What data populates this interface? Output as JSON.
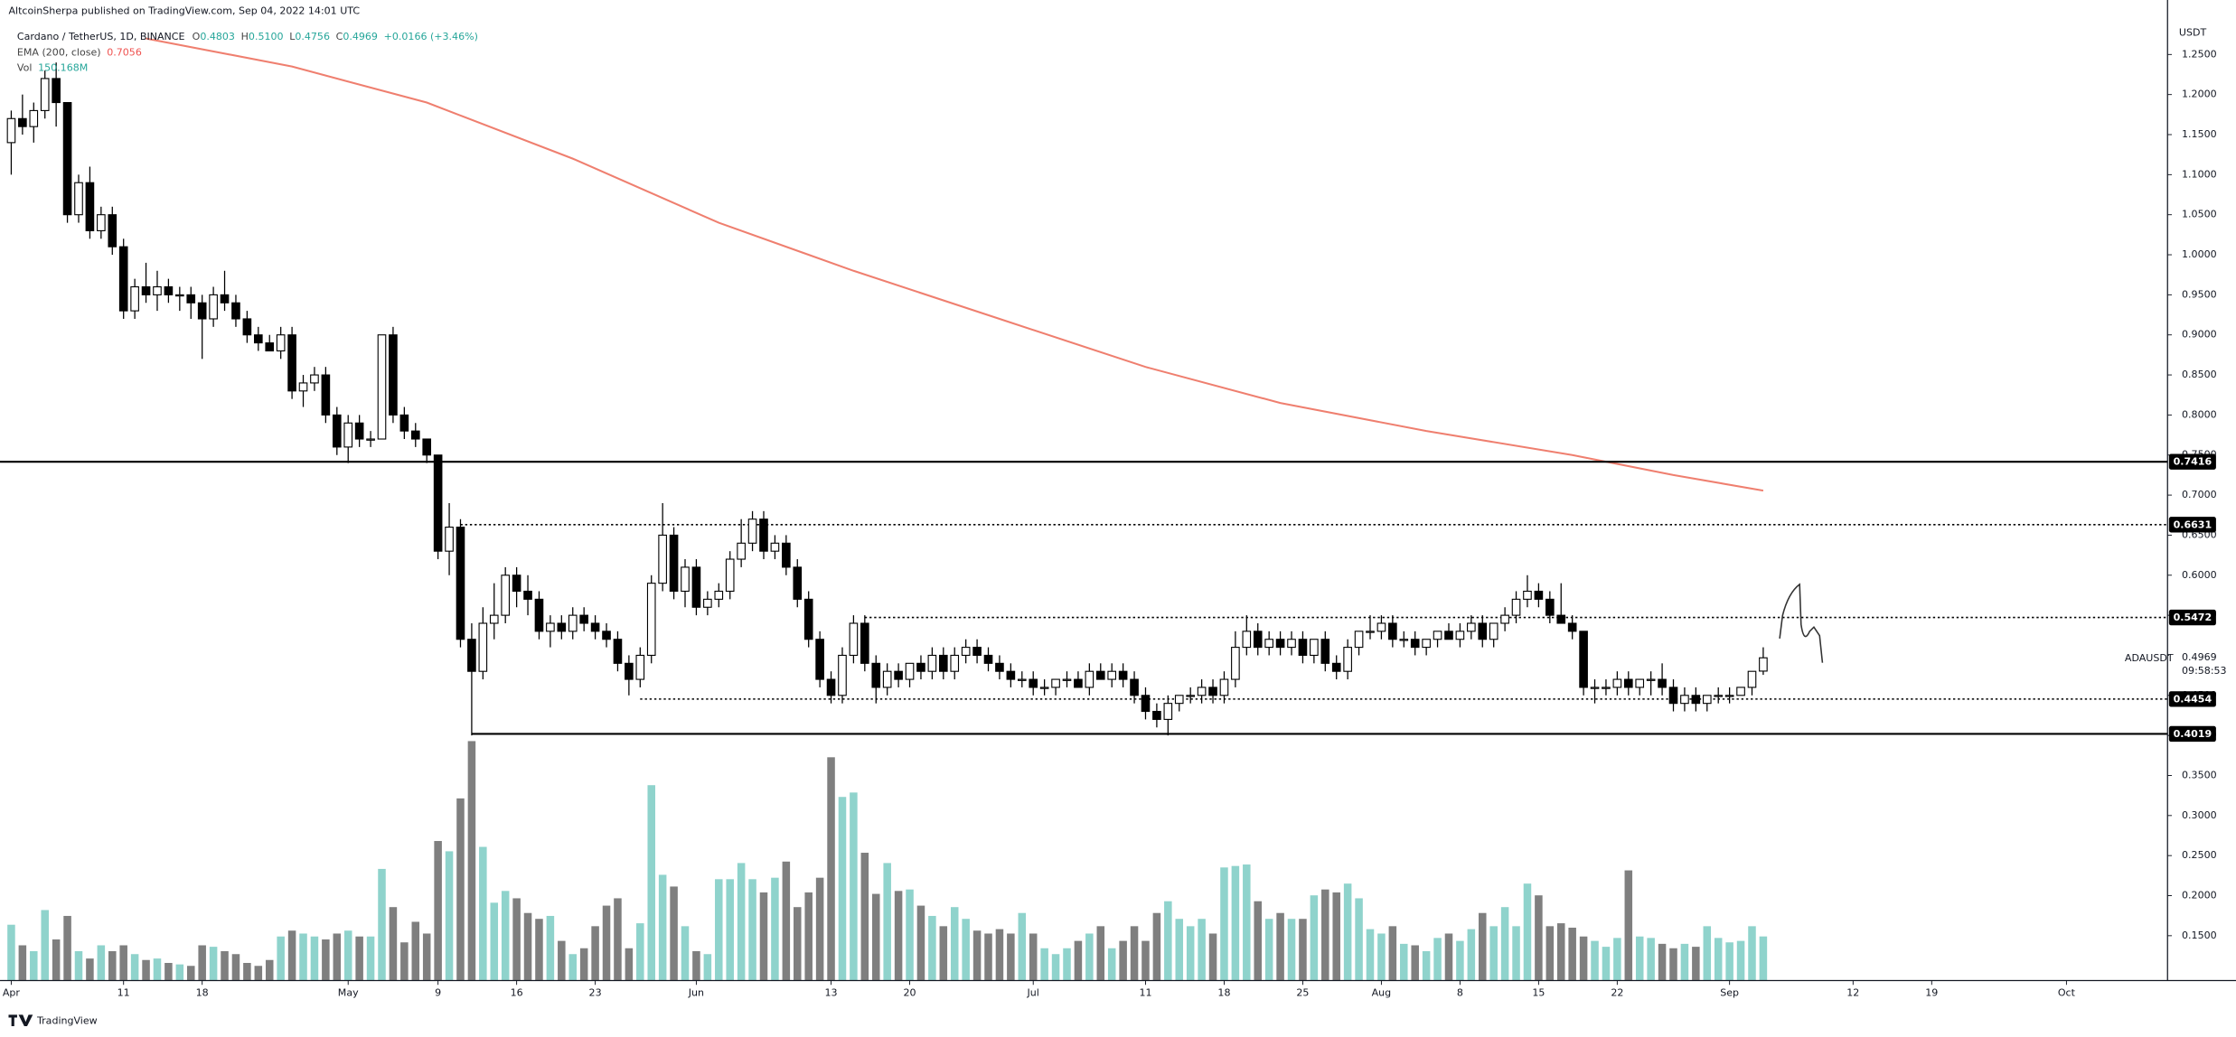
{
  "header": {
    "published": "AltcoinSherpa published on TradingView.com, Sep 04, 2022 14:01 UTC",
    "logo": "TradingView"
  },
  "chart_data": {
    "type": "candlestick",
    "title": "Cardano / TetherUS, 1D, BINANCE",
    "legend": {
      "o_label": "O",
      "h_label": "H",
      "high_label": "0.5100",
      "l_label": "L",
      "c_label": "C",
      "change": "+0.0166 (+3.46%)"
    },
    "x": [
      "2022-04-01",
      "2022-04-02",
      "2022-04-03",
      "2022-04-04",
      "2022-04-05",
      "2022-04-06",
      "2022-04-07",
      "2022-04-08",
      "2022-04-09",
      "2022-04-10",
      "2022-04-11",
      "2022-04-12",
      "2022-04-13",
      "2022-04-14",
      "2022-04-15",
      "2022-04-16",
      "2022-04-17",
      "2022-04-18",
      "2022-04-19",
      "2022-04-20",
      "2022-04-21",
      "2022-04-22",
      "2022-04-23",
      "2022-04-24",
      "2022-04-25",
      "2022-04-26",
      "2022-04-27",
      "2022-04-28",
      "2022-04-29",
      "2022-04-30",
      "2022-05-01",
      "2022-05-02",
      "2022-05-03",
      "2022-05-04",
      "2022-05-05",
      "2022-05-06",
      "2022-05-07",
      "2022-05-08",
      "2022-05-09",
      "2022-05-10",
      "2022-05-11",
      "2022-05-12",
      "2022-05-13",
      "2022-05-14",
      "2022-05-15",
      "2022-05-16",
      "2022-05-17",
      "2022-05-18",
      "2022-05-19",
      "2022-05-20",
      "2022-05-21",
      "2022-05-22",
      "2022-05-23",
      "2022-05-24",
      "2022-05-25",
      "2022-05-26",
      "2022-05-27",
      "2022-05-28",
      "2022-05-29",
      "2022-05-30",
      "2022-05-31",
      "2022-06-01",
      "2022-06-02",
      "2022-06-03",
      "2022-06-04",
      "2022-06-05",
      "2022-06-06",
      "2022-06-07",
      "2022-06-08",
      "2022-06-09",
      "2022-06-10",
      "2022-06-11",
      "2022-06-12",
      "2022-06-13",
      "2022-06-14",
      "2022-06-15",
      "2022-06-16",
      "2022-06-17",
      "2022-06-18",
      "2022-06-19",
      "2022-06-20",
      "2022-06-21",
      "2022-06-22",
      "2022-06-23",
      "2022-06-24",
      "2022-06-25",
      "2022-06-26",
      "2022-06-27",
      "2022-06-28",
      "2022-06-29",
      "2022-06-30",
      "2022-07-01",
      "2022-07-02",
      "2022-07-03",
      "2022-07-04",
      "2022-07-05",
      "2022-07-06",
      "2022-07-07",
      "2022-07-08",
      "2022-07-09",
      "2022-07-10",
      "2022-07-11",
      "2022-07-12",
      "2022-07-13",
      "2022-07-14",
      "2022-07-15",
      "2022-07-16",
      "2022-07-17",
      "2022-07-18",
      "2022-07-19",
      "2022-07-20",
      "2022-07-21",
      "2022-07-22",
      "2022-07-23",
      "2022-07-24",
      "2022-07-25",
      "2022-07-26",
      "2022-07-27",
      "2022-07-28",
      "2022-07-29",
      "2022-07-30",
      "2022-07-31",
      "2022-08-01",
      "2022-08-02",
      "2022-08-03",
      "2022-08-04",
      "2022-08-05",
      "2022-08-06",
      "2022-08-07",
      "2022-08-08",
      "2022-08-09",
      "2022-08-10",
      "2022-08-11",
      "2022-08-12",
      "2022-08-13",
      "2022-08-14",
      "2022-08-15",
      "2022-08-16",
      "2022-08-17",
      "2022-08-18",
      "2022-08-19",
      "2022-08-20",
      "2022-08-21",
      "2022-08-22",
      "2022-08-23",
      "2022-08-24",
      "2022-08-25",
      "2022-08-26",
      "2022-08-27",
      "2022-08-28",
      "2022-08-29",
      "2022-08-30",
      "2022-08-31",
      "2022-09-01",
      "2022-09-02",
      "2022-09-03",
      "2022-09-04"
    ],
    "open": [
      1.14,
      1.17,
      1.16,
      1.18,
      1.22,
      1.19,
      1.05,
      1.09,
      1.03,
      1.05,
      1.01,
      0.93,
      0.96,
      0.95,
      0.96,
      0.95,
      0.95,
      0.94,
      0.92,
      0.95,
      0.94,
      0.92,
      0.9,
      0.89,
      0.88,
      0.9,
      0.83,
      0.84,
      0.85,
      0.8,
      0.76,
      0.79,
      0.77,
      0.77,
      0.9,
      0.8,
      0.78,
      0.77,
      0.75,
      0.63,
      0.66,
      0.52,
      0.48,
      0.54,
      0.55,
      0.6,
      0.58,
      0.57,
      0.53,
      0.54,
      0.53,
      0.55,
      0.54,
      0.53,
      0.52,
      0.49,
      0.47,
      0.5,
      0.59,
      0.65,
      0.58,
      0.61,
      0.56,
      0.57,
      0.58,
      0.62,
      0.64,
      0.67,
      0.63,
      0.64,
      0.61,
      0.57,
      0.52,
      0.47,
      0.45,
      0.5,
      0.54,
      0.49,
      0.46,
      0.48,
      0.47,
      0.49,
      0.48,
      0.5,
      0.48,
      0.5,
      0.51,
      0.5,
      0.49,
      0.48,
      0.47,
      0.47,
      0.46,
      0.46,
      0.47,
      0.47,
      0.46,
      0.48,
      0.47,
      0.48,
      0.47,
      0.45,
      0.43,
      0.42,
      0.44,
      0.45,
      0.45,
      0.46,
      0.45,
      0.47,
      0.51,
      0.53,
      0.51,
      0.52,
      0.51,
      0.52,
      0.5,
      0.52,
      0.49,
      0.48,
      0.51,
      0.53,
      0.53,
      0.54,
      0.52,
      0.52,
      0.51,
      0.52,
      0.53,
      0.52,
      0.53,
      0.54,
      0.52,
      0.54,
      0.55,
      0.57,
      0.58,
      0.57,
      0.55,
      0.54,
      0.53,
      0.46,
      0.46,
      0.46,
      0.47,
      0.46,
      0.47,
      0.47,
      0.46,
      0.44,
      0.45,
      0.44,
      0.45,
      0.45,
      0.45,
      0.46,
      0.4803
    ],
    "high": [
      1.18,
      1.2,
      1.19,
      1.23,
      1.24,
      1.19,
      1.1,
      1.11,
      1.06,
      1.06,
      1.02,
      0.97,
      0.99,
      0.98,
      0.97,
      0.96,
      0.96,
      0.95,
      0.96,
      0.98,
      0.95,
      0.93,
      0.91,
      0.9,
      0.91,
      0.91,
      0.85,
      0.86,
      0.86,
      0.81,
      0.8,
      0.8,
      0.78,
      0.9,
      0.91,
      0.81,
      0.79,
      0.77,
      0.75,
      0.69,
      0.67,
      0.54,
      0.56,
      0.59,
      0.61,
      0.61,
      0.6,
      0.58,
      0.55,
      0.55,
      0.56,
      0.56,
      0.55,
      0.54,
      0.53,
      0.5,
      0.51,
      0.6,
      0.69,
      0.66,
      0.62,
      0.62,
      0.58,
      0.59,
      0.63,
      0.67,
      0.68,
      0.68,
      0.65,
      0.65,
      0.62,
      0.58,
      0.53,
      0.48,
      0.51,
      0.55,
      0.55,
      0.5,
      0.49,
      0.49,
      0.49,
      0.5,
      0.51,
      0.51,
      0.51,
      0.52,
      0.52,
      0.51,
      0.5,
      0.49,
      0.48,
      0.48,
      0.47,
      0.47,
      0.48,
      0.48,
      0.49,
      0.49,
      0.49,
      0.49,
      0.48,
      0.46,
      0.44,
      0.45,
      0.45,
      0.46,
      0.47,
      0.47,
      0.48,
      0.53,
      0.55,
      0.54,
      0.53,
      0.53,
      0.53,
      0.53,
      0.52,
      0.53,
      0.5,
      0.52,
      0.53,
      0.55,
      0.55,
      0.55,
      0.53,
      0.53,
      0.52,
      0.53,
      0.54,
      0.54,
      0.55,
      0.55,
      0.54,
      0.56,
      0.58,
      0.6,
      0.59,
      0.58,
      0.59,
      0.55,
      0.53,
      0.47,
      0.47,
      0.48,
      0.48,
      0.47,
      0.48,
      0.49,
      0.47,
      0.46,
      0.46,
      0.45,
      0.46,
      0.46,
      0.46,
      0.48,
      0.51
    ],
    "low": [
      1.1,
      1.15,
      1.14,
      1.17,
      1.16,
      1.04,
      1.04,
      1.02,
      1.02,
      1.0,
      0.92,
      0.92,
      0.94,
      0.93,
      0.94,
      0.93,
      0.92,
      0.87,
      0.91,
      0.93,
      0.91,
      0.89,
      0.88,
      0.88,
      0.87,
      0.82,
      0.81,
      0.83,
      0.79,
      0.75,
      0.74,
      0.76,
      0.76,
      0.77,
      0.79,
      0.77,
      0.76,
      0.74,
      0.62,
      0.6,
      0.51,
      0.4,
      0.47,
      0.52,
      0.54,
      0.56,
      0.55,
      0.52,
      0.51,
      0.52,
      0.52,
      0.53,
      0.52,
      0.51,
      0.48,
      0.45,
      0.46,
      0.49,
      0.58,
      0.57,
      0.56,
      0.55,
      0.55,
      0.56,
      0.57,
      0.61,
      0.63,
      0.62,
      0.62,
      0.6,
      0.56,
      0.51,
      0.46,
      0.44,
      0.44,
      0.49,
      0.48,
      0.44,
      0.45,
      0.46,
      0.46,
      0.47,
      0.47,
      0.47,
      0.47,
      0.49,
      0.49,
      0.48,
      0.47,
      0.46,
      0.46,
      0.45,
      0.45,
      0.45,
      0.46,
      0.46,
      0.45,
      0.47,
      0.46,
      0.46,
      0.44,
      0.42,
      0.41,
      0.4,
      0.43,
      0.44,
      0.44,
      0.44,
      0.44,
      0.46,
      0.5,
      0.5,
      0.5,
      0.5,
      0.5,
      0.49,
      0.49,
      0.48,
      0.47,
      0.47,
      0.5,
      0.52,
      0.52,
      0.51,
      0.51,
      0.5,
      0.5,
      0.51,
      0.52,
      0.51,
      0.52,
      0.51,
      0.51,
      0.53,
      0.54,
      0.56,
      0.56,
      0.54,
      0.54,
      0.52,
      0.45,
      0.44,
      0.45,
      0.45,
      0.45,
      0.45,
      0.45,
      0.45,
      0.43,
      0.43,
      0.43,
      0.43,
      0.44,
      0.44,
      0.45,
      0.45,
      0.4756
    ],
    "close": [
      1.17,
      1.16,
      1.18,
      1.22,
      1.19,
      1.05,
      1.09,
      1.03,
      1.05,
      1.01,
      0.93,
      0.96,
      0.95,
      0.96,
      0.95,
      0.95,
      0.94,
      0.92,
      0.95,
      0.94,
      0.92,
      0.9,
      0.89,
      0.88,
      0.9,
      0.83,
      0.84,
      0.85,
      0.8,
      0.76,
      0.79,
      0.77,
      0.77,
      0.9,
      0.8,
      0.78,
      0.77,
      0.75,
      0.63,
      0.66,
      0.52,
      0.48,
      0.54,
      0.55,
      0.6,
      0.58,
      0.57,
      0.53,
      0.54,
      0.53,
      0.55,
      0.54,
      0.53,
      0.52,
      0.49,
      0.47,
      0.5,
      0.59,
      0.65,
      0.58,
      0.61,
      0.56,
      0.57,
      0.58,
      0.62,
      0.64,
      0.67,
      0.63,
      0.64,
      0.61,
      0.57,
      0.52,
      0.47,
      0.45,
      0.5,
      0.54,
      0.49,
      0.46,
      0.48,
      0.47,
      0.49,
      0.48,
      0.5,
      0.48,
      0.5,
      0.51,
      0.5,
      0.49,
      0.48,
      0.47,
      0.47,
      0.46,
      0.46,
      0.47,
      0.47,
      0.46,
      0.48,
      0.47,
      0.48,
      0.47,
      0.45,
      0.43,
      0.42,
      0.44,
      0.45,
      0.45,
      0.46,
      0.45,
      0.47,
      0.51,
      0.53,
      0.51,
      0.52,
      0.51,
      0.52,
      0.5,
      0.52,
      0.49,
      0.48,
      0.51,
      0.53,
      0.53,
      0.54,
      0.52,
      0.52,
      0.51,
      0.52,
      0.53,
      0.52,
      0.53,
      0.54,
      0.52,
      0.54,
      0.55,
      0.57,
      0.58,
      0.57,
      0.55,
      0.54,
      0.53,
      0.46,
      0.46,
      0.46,
      0.47,
      0.46,
      0.47,
      0.47,
      0.46,
      0.44,
      0.45,
      0.44,
      0.45,
      0.45,
      0.45,
      0.46,
      0.48,
      0.4969
    ],
    "volume": [
      190,
      120,
      100,
      240,
      140,
      220,
      100,
      75,
      120,
      100,
      120,
      90,
      70,
      75,
      60,
      55,
      50,
      120,
      115,
      100,
      90,
      60,
      50,
      70,
      150,
      170,
      160,
      150,
      140,
      160,
      170,
      150,
      150,
      380,
      250,
      130,
      200,
      160,
      475,
      440,
      620,
      815,
      455,
      265,
      305,
      280,
      230,
      210,
      220,
      135,
      90,
      110,
      185,
      255,
      280,
      110,
      195,
      665,
      360,
      320,
      185,
      100,
      90,
      345,
      345,
      400,
      345,
      300,
      350,
      405,
      250,
      300,
      350,
      760,
      625,
      640,
      435,
      295,
      400,
      305,
      310,
      255,
      220,
      185,
      250,
      210,
      170,
      160,
      175,
      160,
      230,
      160,
      110,
      90,
      110,
      135,
      160,
      185,
      110,
      135,
      185,
      135,
      230,
      270,
      210,
      185,
      210,
      160,
      385,
      390,
      395,
      270,
      210,
      230,
      210,
      210,
      290,
      310,
      300,
      330,
      280,
      175,
      160,
      185,
      125,
      120,
      100,
      145,
      160,
      135,
      175,
      230,
      185,
      250,
      185,
      330,
      290,
      185,
      195,
      180,
      150,
      135,
      115,
      145,
      375,
      150,
      145,
      125,
      110,
      125,
      115,
      185,
      145,
      130,
      135,
      185,
      150.168
    ],
    "up_color": "#ffffff",
    "down_color": "#000000",
    "wick_color": "#000000",
    "volume_up_color": "#8fd3cc",
    "volume_down_color": "#7f7f7f",
    "volume_legend": {
      "name": "Vol",
      "value_label": "150.168M",
      "color": "#26a69a"
    },
    "ema": {
      "name": "EMA (200, close)",
      "color": "#ef7f6f",
      "x": [
        "2022-04-13",
        "2022-04-26",
        "2022-05-08",
        "2022-05-21",
        "2022-06-03",
        "2022-06-15",
        "2022-06-28",
        "2022-07-11",
        "2022-07-23",
        "2022-08-05",
        "2022-08-18",
        "2022-08-27",
        "2022-09-04"
      ],
      "values": [
        1.27,
        1.235,
        1.19,
        1.12,
        1.04,
        0.98,
        0.92,
        0.86,
        0.815,
        0.78,
        0.75,
        0.725,
        0.7056
      ]
    },
    "levels": [
      {
        "value": 0.7416,
        "start": "2022-03-31",
        "style": "solid"
      },
      {
        "value": 0.6631,
        "start": "2022-05-11",
        "style": "dotted"
      },
      {
        "value": 0.5472,
        "start": "2022-06-16",
        "style": "dotted"
      },
      {
        "value": 0.4454,
        "start": "2022-05-27",
        "style": "dotted"
      },
      {
        "value": 0.4019,
        "start": "2022-05-12",
        "style": "solid"
      }
    ],
    "axis_unit": "USDT",
    "price_tag": {
      "symbol": "ADAUSDT",
      "countdown": "09:58:53"
    },
    "xlim": [
      "2022-03-31",
      "2022-10-10"
    ],
    "xticks": [
      {
        "value": "2022-04-01",
        "label": "Apr"
      },
      {
        "value": "2022-04-11",
        "label": "11"
      },
      {
        "value": "2022-04-18",
        "label": "18"
      },
      {
        "value": "2022-05-01",
        "label": "May"
      },
      {
        "value": "2022-05-09",
        "label": "9"
      },
      {
        "value": "2022-05-16",
        "label": "16"
      },
      {
        "value": "2022-05-23",
        "label": "23"
      },
      {
        "value": "2022-06-01",
        "label": "Jun"
      },
      {
        "value": "2022-06-13",
        "label": "13"
      },
      {
        "value": "2022-06-20",
        "label": "20"
      },
      {
        "value": "2022-07-01",
        "label": "Jul"
      },
      {
        "value": "2022-07-11",
        "label": "11"
      },
      {
        "value": "2022-07-18",
        "label": "18"
      },
      {
        "value": "2022-07-25",
        "label": "25"
      },
      {
        "value": "2022-08-01",
        "label": "Aug"
      },
      {
        "value": "2022-08-08",
        "label": "8"
      },
      {
        "value": "2022-08-15",
        "label": "15"
      },
      {
        "value": "2022-08-22",
        "label": "22"
      },
      {
        "value": "2022-09-01",
        "label": "Sep"
      },
      {
        "value": "2022-09-12",
        "label": "12"
      },
      {
        "value": "2022-09-19",
        "label": "19"
      },
      {
        "value": "2022-10-01",
        "label": "Oct"
      }
    ],
    "ylim": [
      0.094,
      1.286
    ],
    "yticks": [
      {
        "value": 1.25,
        "label": "1.2500"
      },
      {
        "value": 1.2,
        "label": "1.2000"
      },
      {
        "value": 1.15,
        "label": "1.1500"
      },
      {
        "value": 1.1,
        "label": "1.1000"
      },
      {
        "value": 1.05,
        "label": "1.0500"
      },
      {
        "value": 1.0,
        "label": "1.0000"
      },
      {
        "value": 0.95,
        "label": "0.9500"
      },
      {
        "value": 0.9,
        "label": "0.9000"
      },
      {
        "value": 0.85,
        "label": "0.8500"
      },
      {
        "value": 0.8,
        "label": "0.8000"
      },
      {
        "value": 0.75,
        "label": "0.7500"
      },
      {
        "value": 0.7,
        "label": "0.7000"
      },
      {
        "value": 0.65,
        "label": "0.6500"
      },
      {
        "value": 0.6,
        "label": "0.6000"
      },
      {
        "value": 0.55,
        "label": "0.5500"
      },
      {
        "value": 0.5,
        "label": "0.5000"
      },
      {
        "value": 0.45,
        "label": "0.4500"
      },
      {
        "value": 0.4,
        "label": "0.4000"
      },
      {
        "value": 0.35,
        "label": "0.3500"
      },
      {
        "value": 0.3,
        "label": "0.3000"
      },
      {
        "value": 0.25,
        "label": "0.2500"
      },
      {
        "value": 0.2,
        "label": "0.2000"
      },
      {
        "value": 0.15,
        "label": "0.1500"
      }
    ],
    "volume_lim": [
      0,
      3250
    ]
  }
}
